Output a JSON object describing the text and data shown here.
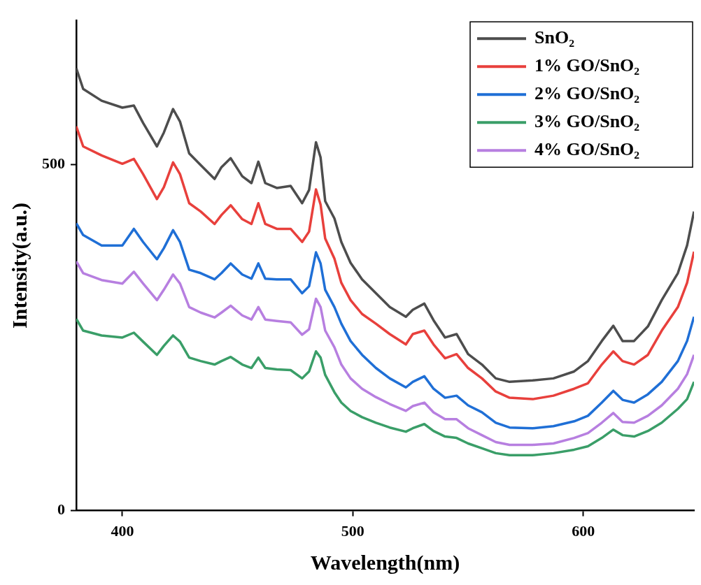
{
  "chart_data": {
    "type": "line",
    "xlabel": "Wavelength(nm)",
    "ylabel": "Intensity(a.u.)",
    "x": [
      380,
      383,
      391,
      400,
      405,
      409,
      415,
      418,
      422,
      425,
      429,
      434,
      440,
      443,
      447,
      452,
      456,
      459,
      462,
      467,
      473,
      478,
      481,
      484,
      486,
      488,
      492,
      495,
      499,
      504,
      510,
      516,
      523,
      526,
      531,
      535,
      540,
      545,
      550,
      556,
      562,
      568,
      578,
      587,
      596,
      602,
      608,
      613,
      617,
      622,
      628,
      634,
      641,
      645,
      648
    ],
    "series": [
      {
        "name": "SnO₂",
        "color": "#4d4d4d",
        "values": [
          639,
          609,
          592,
          582,
          585,
          560,
          526,
          546,
          580,
          562,
          516,
          499,
          479,
          496,
          509,
          483,
          473,
          504,
          473,
          466,
          469,
          444,
          463,
          532,
          510,
          447,
          422,
          388,
          358,
          334,
          314,
          294,
          280,
          290,
          299,
          275,
          250,
          255,
          226,
          211,
          191,
          186,
          188,
          191,
          201,
          216,
          245,
          267,
          245,
          245,
          266,
          304,
          343,
          383,
          432
        ]
      },
      {
        "name": "1% GO/SnO₂",
        "color": "#e8403c",
        "values": [
          555,
          526,
          513,
          501,
          508,
          486,
          450,
          467,
          503,
          486,
          444,
          432,
          414,
          427,
          441,
          421,
          414,
          444,
          414,
          407,
          407,
          388,
          403,
          464,
          442,
          393,
          364,
          329,
          304,
          284,
          270,
          255,
          240,
          255,
          260,
          240,
          220,
          226,
          206,
          191,
          172,
          163,
          161,
          166,
          176,
          184,
          211,
          230,
          216,
          211,
          225,
          260,
          294,
          329,
          374
        ]
      },
      {
        "name": "2% GO/SnO₂",
        "color": "#1f6fd6",
        "values": [
          415,
          398,
          383,
          383,
          407,
          388,
          363,
          379,
          405,
          388,
          348,
          343,
          334,
          343,
          357,
          341,
          335,
          357,
          335,
          334,
          334,
          314,
          324,
          373,
          357,
          319,
          294,
          270,
          245,
          225,
          206,
          191,
          178,
          186,
          194,
          176,
          163,
          166,
          152,
          142,
          127,
          120,
          119,
          122,
          129,
          137,
          156,
          173,
          160,
          156,
          168,
          186,
          216,
          245,
          280
        ]
      },
      {
        "name": "3% GO/SnO₂",
        "color": "#3a9e68",
        "values": [
          277,
          260,
          253,
          250,
          257,
          244,
          225,
          238,
          253,
          244,
          221,
          216,
          211,
          216,
          222,
          211,
          206,
          221,
          206,
          204,
          203,
          191,
          201,
          230,
          221,
          196,
          171,
          156,
          144,
          135,
          127,
          120,
          114,
          119,
          125,
          115,
          107,
          105,
          97,
          90,
          83,
          80,
          80,
          83,
          88,
          93,
          105,
          117,
          109,
          107,
          115,
          127,
          147,
          161,
          186
        ]
      },
      {
        "name": "4% GO/SnO₂",
        "color": "#b77fe0",
        "values": [
          360,
          343,
          333,
          328,
          345,
          328,
          304,
          319,
          341,
          328,
          294,
          286,
          279,
          286,
          296,
          282,
          276,
          294,
          276,
          274,
          272,
          254,
          262,
          306,
          294,
          260,
          236,
          211,
          191,
          176,
          164,
          154,
          144,
          151,
          156,
          142,
          132,
          132,
          119,
          109,
          99,
          95,
          95,
          97,
          105,
          112,
          127,
          141,
          128,
          127,
          137,
          152,
          176,
          197,
          225
        ]
      }
    ],
    "xlim": [
      380,
      648
    ],
    "xticks": [
      400,
      500,
      600
    ],
    "ylim": [
      0,
      708
    ],
    "yticks": [
      0,
      500
    ],
    "legend": "top right",
    "grid": false,
    "marker": "none",
    "line_style": "solid"
  }
}
